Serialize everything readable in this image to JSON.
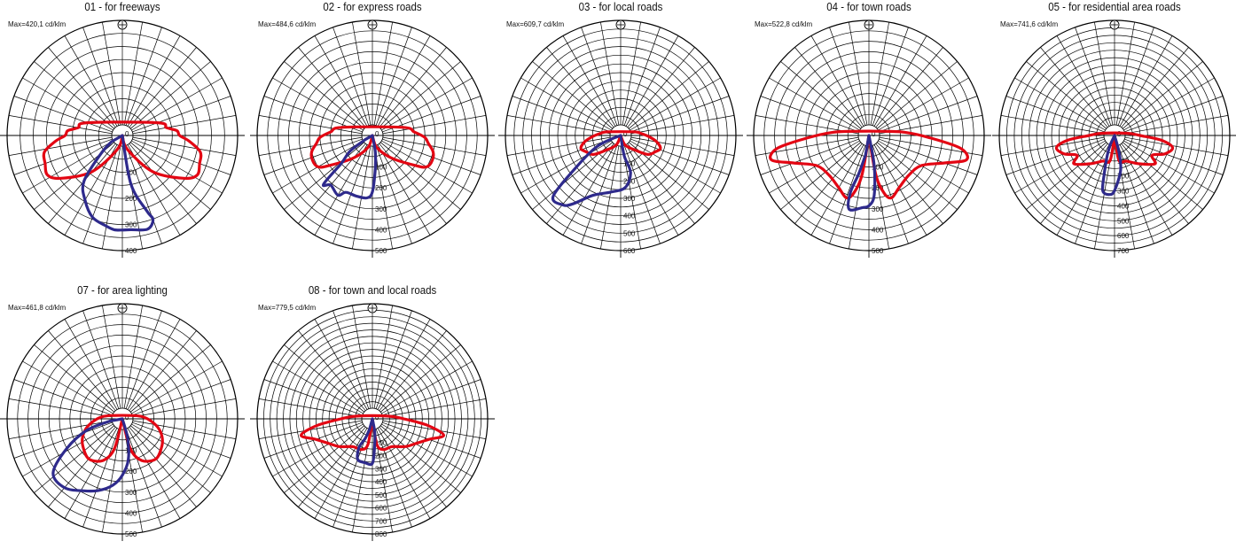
{
  "colors": {
    "c0_plane": "#e30613",
    "c90_plane": "#2e2a8c",
    "grid": "#000000"
  },
  "icon": "luminaire-icon",
  "chart_data": [
    {
      "type": "polar",
      "title": "01 - for freeways",
      "max_label": "Max=420,1 cd/klm",
      "rmax": 420,
      "ticks": [
        0,
        100,
        200,
        300,
        400
      ],
      "series": [
        {
          "points": [
            [
              0,
              0
            ],
            [
              20,
              60
            ],
            [
              40,
              190
            ],
            [
              55,
              300
            ],
            [
              62,
              340
            ],
            [
              70,
              330
            ],
            [
              78,
              320
            ],
            [
              85,
              270
            ],
            [
              90,
              230
            ],
            [
              95,
              220
            ],
            [
              100,
              180
            ],
            [
              110,
              150
            ]
          ],
          "points_left": [
            [
              0,
              0
            ],
            [
              20,
              60
            ],
            [
              40,
              190
            ],
            [
              55,
              300
            ],
            [
              62,
              340
            ],
            [
              70,
              330
            ],
            [
              78,
              320
            ],
            [
              85,
              270
            ],
            [
              90,
              230
            ],
            [
              95,
              220
            ],
            [
              100,
              180
            ],
            [
              110,
              150
            ]
          ],
          "color": "c0"
        },
        {
          "points": [
            [
              0,
              0
            ],
            [
              10,
              200
            ],
            [
              18,
              320
            ],
            [
              20,
              360
            ],
            [
              15,
              390
            ],
            [
              5,
              380
            ],
            [
              0,
              380
            ],
            [
              -5,
              380
            ],
            [
              -10,
              370
            ],
            [
              -20,
              350
            ],
            [
              -30,
              300
            ],
            [
              -40,
              240
            ],
            [
              -50,
              110
            ],
            [
              -60,
              50
            ]
          ],
          "color": "c90"
        }
      ]
    },
    {
      "type": "polar",
      "title": "02 - for express roads",
      "max_label": "Max=484,6 cd/klm",
      "rmax": 500,
      "ticks": [
        0,
        100,
        200,
        300,
        400,
        500
      ],
      "series": [
        {
          "points": [
            [
              0,
              0
            ],
            [
              20,
              60
            ],
            [
              40,
              140
            ],
            [
              55,
              250
            ],
            [
              60,
              300
            ],
            [
              68,
              310
            ],
            [
              75,
              300
            ],
            [
              82,
              270
            ],
            [
              88,
              250
            ],
            [
              95,
              200
            ],
            [
              105,
              150
            ]
          ],
          "color": "c0"
        },
        {
          "points": [
            [
              0,
              0
            ],
            [
              10,
              80
            ],
            [
              5,
              160
            ],
            [
              0,
              270
            ],
            [
              -5,
              300
            ],
            [
              -15,
              300
            ],
            [
              -25,
              300
            ],
            [
              -30,
              330
            ],
            [
              -40,
              310
            ],
            [
              -45,
              330
            ],
            [
              -48,
              200
            ],
            [
              -55,
              130
            ],
            [
              -60,
              40
            ]
          ],
          "color": "c90"
        }
      ]
    },
    {
      "type": "polar",
      "title": "03 - for local roads",
      "max_label": "Max=609,7 cd/klm",
      "rmax": 600,
      "ticks": [
        0,
        100,
        200,
        300,
        400,
        500,
        600
      ],
      "series": [
        {
          "points": [
            [
              0,
              0
            ],
            [
              25,
              60
            ],
            [
              45,
              120
            ],
            [
              55,
              190
            ],
            [
              65,
              220
            ],
            [
              72,
              240
            ],
            [
              80,
              210
            ],
            [
              88,
              160
            ],
            [
              95,
              120
            ],
            [
              105,
              80
            ]
          ],
          "color": "c0"
        },
        {
          "points": [
            [
              0,
              0
            ],
            [
              10,
              120
            ],
            [
              15,
              220
            ],
            [
              5,
              300
            ],
            [
              -10,
              330
            ],
            [
              -25,
              380
            ],
            [
              -35,
              480
            ],
            [
              -40,
              520
            ],
            [
              -48,
              520
            ],
            [
              -55,
              300
            ],
            [
              -65,
              150
            ],
            [
              -70,
              40
            ]
          ],
          "color": "c90"
        }
      ]
    },
    {
      "type": "polar",
      "title": "04 - for town roads",
      "max_label": "Max=522,8 cd/klm",
      "rmax": 520,
      "ticks": [
        0,
        100,
        200,
        300,
        400,
        500
      ],
      "series": [
        {
          "points": [
            [
              0,
              0
            ],
            [
              10,
              200
            ],
            [
              15,
              300
            ],
            [
              20,
              330
            ],
            [
              30,
              300
            ],
            [
              45,
              280
            ],
            [
              60,
              300
            ],
            [
              70,
              400
            ],
            [
              76,
              500
            ],
            [
              82,
              460
            ],
            [
              88,
              300
            ],
            [
              95,
              180
            ],
            [
              105,
              80
            ]
          ],
          "color": "c0"
        },
        {
          "points": [
            [
              0,
              0
            ],
            [
              10,
              150
            ],
            [
              5,
              300
            ],
            [
              0,
              350
            ],
            [
              -5,
              360
            ],
            [
              -15,
              380
            ],
            [
              -18,
              300
            ],
            [
              -15,
              200
            ],
            [
              -10,
              100
            ]
          ],
          "color": "c90"
        }
      ]
    },
    {
      "type": "polar",
      "title": "05 - for residential area roads",
      "max_label": "Max=741,6 cd/klm",
      "rmax": 740,
      "ticks": [
        0,
        100,
        200,
        300,
        400,
        500,
        600,
        700
      ],
      "series": [
        {
          "points": [
            [
              0,
              0
            ],
            [
              10,
              180
            ],
            [
              25,
              200
            ],
            [
              40,
              260
            ],
            [
              55,
              350
            ],
            [
              62,
              300
            ],
            [
              70,
              380
            ],
            [
              78,
              420
            ],
            [
              84,
              340
            ],
            [
              90,
              180
            ],
            [
              100,
              90
            ]
          ],
          "color": "c0"
        },
        {
          "points": [
            [
              0,
              0
            ],
            [
              15,
              120
            ],
            [
              10,
              250
            ],
            [
              0,
              390
            ],
            [
              -5,
              420
            ],
            [
              -12,
              400
            ],
            [
              -15,
              280
            ],
            [
              -20,
              150
            ],
            [
              -25,
              70
            ]
          ],
          "color": "c90"
        }
      ]
    },
    {
      "type": "polar",
      "title": "07 - for area lighting",
      "max_label": "Max=461,8 cd/klm",
      "rmax": 500,
      "ticks": [
        0,
        100,
        200,
        300,
        400,
        500
      ],
      "series": [
        {
          "points": [
            [
              0,
              0
            ],
            [
              15,
              150
            ],
            [
              25,
              220
            ],
            [
              40,
              250
            ],
            [
              55,
              230
            ],
            [
              65,
              210
            ],
            [
              75,
              180
            ],
            [
              85,
              140
            ],
            [
              95,
              100
            ],
            [
              105,
              60
            ]
          ],
          "color": "c0"
        },
        {
          "points": [
            [
              0,
              0
            ],
            [
              15,
              100
            ],
            [
              8,
              200
            ],
            [
              0,
              270
            ],
            [
              -8,
              320
            ],
            [
              -18,
              360
            ],
            [
              -28,
              390
            ],
            [
              -40,
              430
            ],
            [
              -52,
              420
            ],
            [
              -62,
              300
            ],
            [
              -72,
              180
            ],
            [
              -80,
              60
            ]
          ],
          "color": "c90"
        }
      ]
    },
    {
      "type": "polar",
      "title": "08 - for town and local roads",
      "max_label": "Max=779,5 cd/klm",
      "rmax": 800,
      "ticks": [
        0,
        100,
        200,
        300,
        400,
        500,
        600,
        700,
        800
      ],
      "series": [
        {
          "points": [
            [
              0,
              0
            ],
            [
              10,
              200
            ],
            [
              20,
              250
            ],
            [
              35,
              260
            ],
            [
              50,
              330
            ],
            [
              60,
              380
            ],
            [
              70,
              460
            ],
            [
              77,
              560
            ],
            [
              83,
              430
            ],
            [
              90,
              240
            ],
            [
              100,
              120
            ]
          ],
          "color": "c0"
        },
        {
          "points": [
            [
              0,
              0
            ],
            [
              10,
              100
            ],
            [
              5,
              200
            ],
            [
              0,
              340
            ],
            [
              -10,
              340
            ],
            [
              -20,
              330
            ],
            [
              -25,
              240
            ],
            [
              -20,
              160
            ],
            [
              -15,
              80
            ]
          ],
          "color": "c90"
        }
      ]
    }
  ]
}
